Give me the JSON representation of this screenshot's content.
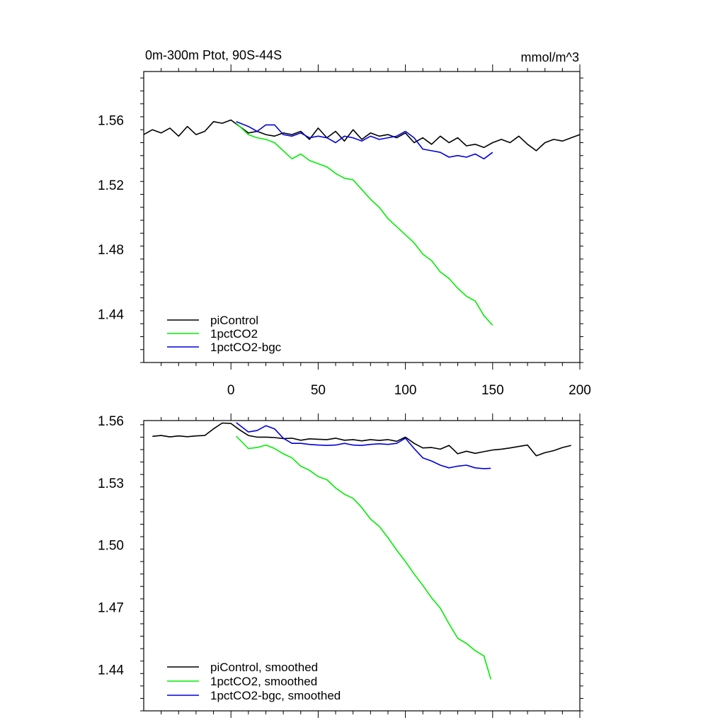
{
  "chart_data": [
    {
      "type": "line",
      "title_left": "0m-300m Ptot, 90S-44S",
      "title_right": "mmol/m^3",
      "xlim": [
        -50,
        200
      ],
      "ylim": [
        1.41,
        1.59
      ],
      "x_ticks": [
        0,
        50,
        100,
        150,
        200
      ],
      "x_tick_labels": [
        "0",
        "50",
        "100",
        "150",
        "200"
      ],
      "y_ticks": [
        1.44,
        1.48,
        1.52,
        1.56
      ],
      "y_tick_labels": [
        "1.44",
        "1.48",
        "1.52",
        "1.56"
      ],
      "legend_position": "bottom-left",
      "series": [
        {
          "name": "piControl",
          "color": "#000000",
          "x": [
            -50,
            -45,
            -40,
            -35,
            -30,
            -25,
            -20,
            -15,
            -10,
            -5,
            0,
            5,
            10,
            15,
            20,
            25,
            30,
            35,
            40,
            45,
            50,
            55,
            60,
            65,
            70,
            75,
            80,
            85,
            90,
            95,
            100,
            105,
            110,
            115,
            120,
            125,
            130,
            135,
            140,
            145,
            150,
            155,
            160,
            165,
            170,
            175,
            180,
            185,
            190,
            195,
            200
          ],
          "y": [
            1.551,
            1.554,
            1.552,
            1.555,
            1.55,
            1.556,
            1.551,
            1.553,
            1.559,
            1.558,
            1.56,
            1.556,
            1.552,
            1.553,
            1.551,
            1.55,
            1.552,
            1.551,
            1.553,
            1.548,
            1.555,
            1.549,
            1.553,
            1.547,
            1.554,
            1.548,
            1.552,
            1.55,
            1.551,
            1.549,
            1.552,
            1.546,
            1.549,
            1.545,
            1.55,
            1.546,
            1.549,
            1.544,
            1.545,
            1.543,
            1.546,
            1.548,
            1.546,
            1.55,
            1.545,
            1.541,
            1.546,
            1.548,
            1.547,
            1.549,
            1.551
          ]
        },
        {
          "name": "1pctCO2",
          "color": "#00ee00",
          "x": [
            3,
            10,
            15,
            20,
            25,
            30,
            35,
            40,
            45,
            50,
            55,
            60,
            65,
            70,
            75,
            80,
            85,
            90,
            95,
            100,
            105,
            110,
            115,
            120,
            125,
            130,
            135,
            140,
            145,
            150
          ],
          "y": [
            1.558,
            1.551,
            1.549,
            1.548,
            1.546,
            1.541,
            1.536,
            1.539,
            1.535,
            1.533,
            1.531,
            1.527,
            1.524,
            1.523,
            1.517,
            1.511,
            1.506,
            1.499,
            1.494,
            1.489,
            1.484,
            1.477,
            1.473,
            1.466,
            1.462,
            1.456,
            1.451,
            1.448,
            1.439,
            1.433
          ]
        },
        {
          "name": "1pctCO2-bgc",
          "color": "#0000dd",
          "x": [
            3,
            10,
            15,
            20,
            25,
            30,
            35,
            40,
            45,
            50,
            55,
            60,
            65,
            70,
            75,
            80,
            85,
            90,
            95,
            100,
            105,
            110,
            115,
            120,
            125,
            130,
            135,
            140,
            145,
            150
          ],
          "y": [
            1.559,
            1.556,
            1.553,
            1.557,
            1.557,
            1.551,
            1.55,
            1.552,
            1.549,
            1.55,
            1.549,
            1.546,
            1.55,
            1.549,
            1.547,
            1.55,
            1.548,
            1.549,
            1.55,
            1.553,
            1.549,
            1.542,
            1.541,
            1.54,
            1.537,
            1.538,
            1.537,
            1.539,
            1.536,
            1.54
          ]
        }
      ]
    },
    {
      "type": "line",
      "xlim": [
        -50,
        200
      ],
      "ylim": [
        1.42,
        1.56
      ],
      "y_ticks": [
        1.44,
        1.47,
        1.5,
        1.53,
        1.56
      ],
      "y_tick_labels": [
        "1.44",
        "1.47",
        "1.50",
        "1.53",
        "1.56"
      ],
      "legend_position": "bottom-left",
      "series": [
        {
          "name": "piControl, smoothed",
          "color": "#000000",
          "x": [
            -45,
            -40,
            -35,
            -30,
            -25,
            -20,
            -15,
            -10,
            -5,
            0,
            5,
            10,
            15,
            20,
            25,
            30,
            35,
            40,
            45,
            50,
            55,
            60,
            65,
            70,
            75,
            80,
            85,
            90,
            95,
            100,
            105,
            110,
            115,
            120,
            125,
            130,
            135,
            140,
            145,
            150,
            155,
            160,
            165,
            170,
            175,
            180,
            185,
            190,
            195
          ],
          "y": [
            1.5524,
            1.5528,
            1.5521,
            1.5526,
            1.5522,
            1.5526,
            1.5528,
            1.556,
            1.5588,
            1.5586,
            1.5555,
            1.5528,
            1.552,
            1.552,
            1.5518,
            1.5513,
            1.5515,
            1.5505,
            1.5512,
            1.551,
            1.5508,
            1.5515,
            1.5505,
            1.5508,
            1.5502,
            1.5508,
            1.5504,
            1.5508,
            1.55,
            1.552,
            1.549,
            1.5468,
            1.547,
            1.5462,
            1.548,
            1.544,
            1.5452,
            1.5442,
            1.545,
            1.5458,
            1.5462,
            1.5468,
            1.5475,
            1.5482,
            1.543,
            1.5445,
            1.5455,
            1.547,
            1.548
          ]
        },
        {
          "name": "1pctCO2, smoothed",
          "color": "#00ee00",
          "x": [
            3,
            10,
            15,
            20,
            25,
            30,
            35,
            40,
            45,
            50,
            55,
            60,
            65,
            70,
            75,
            80,
            85,
            90,
            95,
            100,
            105,
            110,
            115,
            120,
            125,
            130,
            135,
            140,
            145,
            149
          ],
          "y": [
            1.5525,
            1.5465,
            1.547,
            1.5482,
            1.5465,
            1.544,
            1.542,
            1.538,
            1.536,
            1.533,
            1.5315,
            1.5275,
            1.5245,
            1.5225,
            1.518,
            1.5125,
            1.509,
            1.5035,
            1.4975,
            1.492,
            1.486,
            1.4805,
            1.4745,
            1.4695,
            1.462,
            1.455,
            1.4525,
            1.449,
            1.4465,
            1.4352
          ]
        },
        {
          "name": "1pctCO2-bgc, smoothed",
          "color": "#0000dd",
          "x": [
            3,
            10,
            15,
            20,
            25,
            30,
            35,
            40,
            45,
            50,
            55,
            60,
            65,
            70,
            75,
            80,
            85,
            90,
            95,
            100,
            105,
            110,
            115,
            120,
            125,
            130,
            135,
            140,
            145,
            149
          ],
          "y": [
            1.559,
            1.5545,
            1.5552,
            1.5575,
            1.556,
            1.5515,
            1.549,
            1.549,
            1.5485,
            1.5482,
            1.548,
            1.5482,
            1.549,
            1.5482,
            1.548,
            1.5485,
            1.5488,
            1.5485,
            1.549,
            1.5515,
            1.5465,
            1.542,
            1.5405,
            1.5385,
            1.5372,
            1.538,
            1.5385,
            1.5372,
            1.5368,
            1.537
          ]
        }
      ]
    }
  ]
}
